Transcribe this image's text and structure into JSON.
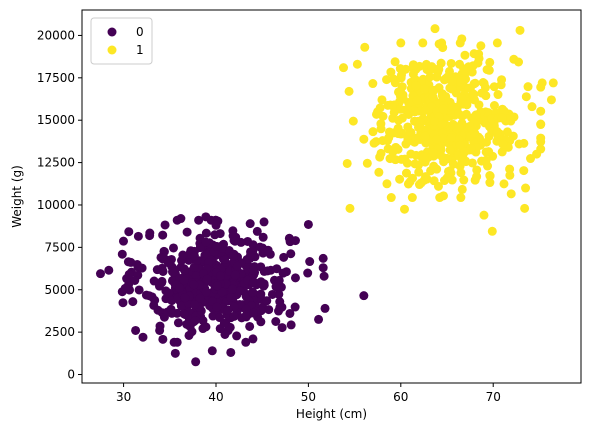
{
  "chart_data": {
    "type": "scatter",
    "title": "",
    "xlabel": "Height (cm)",
    "ylabel": "Weight (g)",
    "xlim": [
      25.5,
      79.5
    ],
    "ylim": [
      -500,
      21500
    ],
    "xticks": [
      30,
      40,
      50,
      60,
      70
    ],
    "yticks": [
      0,
      2500,
      5000,
      7500,
      10000,
      12500,
      15000,
      17500,
      20000
    ],
    "ytick_labels": [
      "0",
      "2500",
      "5000",
      "7500",
      "10000",
      "12500",
      "15000",
      "17500",
      "20000"
    ],
    "grid": false,
    "legend": {
      "placement": "top-left",
      "entries": [
        "0",
        "1"
      ]
    },
    "series": [
      {
        "name": "0",
        "color": "#440154",
        "cluster": {
          "x_mean": 40.0,
          "x_sd": 3.9,
          "y_mean": 5500,
          "y_sd": 1500,
          "count": 500
        },
        "points": [
          [
            27.5,
            5950
          ],
          [
            28.4,
            6150
          ],
          [
            30.6,
            5900
          ],
          [
            31.0,
            4300
          ],
          [
            31.3,
            2600
          ],
          [
            31.6,
            8150
          ],
          [
            32.1,
            2200
          ],
          [
            33.9,
            2600
          ],
          [
            35.6,
            1250
          ],
          [
            35.8,
            1900
          ],
          [
            37.8,
            750
          ],
          [
            39.6,
            1400
          ],
          [
            41.6,
            1300
          ],
          [
            44.0,
            2100
          ],
          [
            36.2,
            9200
          ],
          [
            38.9,
            9300
          ],
          [
            40.2,
            9050
          ],
          [
            43.7,
            8900
          ],
          [
            45.2,
            9000
          ],
          [
            48.6,
            7900
          ],
          [
            50.0,
            8850
          ],
          [
            48.6,
            5700
          ],
          [
            48.0,
            3600
          ],
          [
            51.1,
            3250
          ],
          [
            51.8,
            3900
          ],
          [
            51.6,
            6300
          ],
          [
            51.6,
            6850
          ],
          [
            51.7,
            5800
          ],
          [
            56.0,
            4650
          ],
          [
            46.9,
            4300
          ]
        ]
      },
      {
        "name": "1",
        "color": "#fde725",
        "cluster": {
          "x_mean": 65.0,
          "x_sd": 3.9,
          "y_mean": 15000,
          "y_sd": 1900,
          "count": 500
        },
        "points": [
          [
            53.8,
            18100
          ],
          [
            55.3,
            18300
          ],
          [
            56.1,
            19300
          ],
          [
            54.4,
            16700
          ],
          [
            54.2,
            12450
          ],
          [
            54.5,
            9800
          ],
          [
            58.5,
            11250
          ],
          [
            60.4,
            9750
          ],
          [
            62.2,
            11300
          ],
          [
            63.7,
            20400
          ],
          [
            66.6,
            19800
          ],
          [
            69.0,
            9400
          ],
          [
            69.9,
            8450
          ],
          [
            71.8,
            11750
          ],
          [
            72.9,
            20300
          ],
          [
            74.7,
            13000
          ],
          [
            75.3,
            17200
          ],
          [
            76.5,
            17200
          ],
          [
            76.3,
            16200
          ],
          [
            73.4,
            9800
          ],
          [
            73.5,
            11000
          ],
          [
            72.8,
            13600
          ],
          [
            74.2,
            15800
          ],
          [
            60.2,
            17900
          ]
        ]
      }
    ]
  }
}
